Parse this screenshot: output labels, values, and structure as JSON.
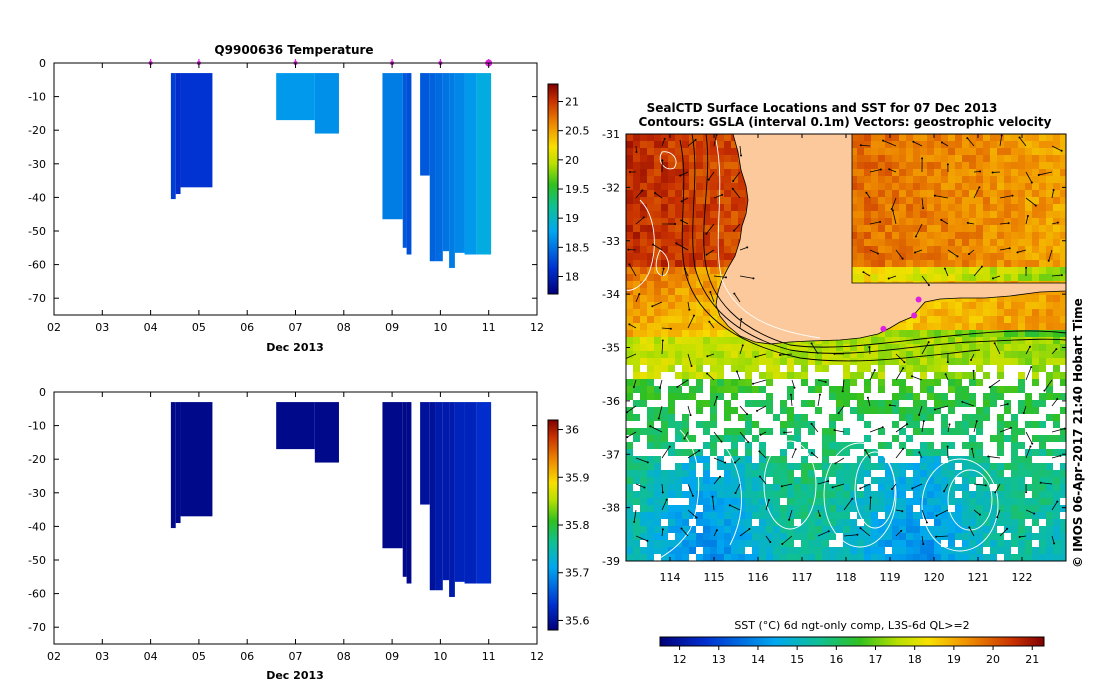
{
  "chart_data": [
    {
      "type": "heatmap",
      "title": "Q9900636  Temperature",
      "xlabel": "Dec 2013",
      "x_ticks": [
        "02",
        "03",
        "04",
        "05",
        "06",
        "07",
        "08",
        "09",
        "10",
        "11",
        "12"
      ],
      "x_range": [
        2,
        12
      ],
      "y_range": [
        -75,
        0
      ],
      "y_ticks": [
        "0",
        "-10",
        "-20",
        "-30",
        "-40",
        "-50",
        "-60",
        "-70"
      ],
      "colorbar_ticks": [
        "21",
        "20.5",
        "20",
        "19.5",
        "19",
        "18.5",
        "18"
      ],
      "colorbar_range": [
        17.7,
        21.3
      ],
      "profile_markers": [
        4.0,
        5.0,
        7.0,
        9.0,
        10.0,
        11.0
      ],
      "profiles": [
        {
          "x0": 4.42,
          "x1": 4.52,
          "bottom": -40.5,
          "value": 18.2
        },
        {
          "x0": 4.52,
          "x1": 4.62,
          "bottom": -39,
          "value": 18.1
        },
        {
          "x0": 4.62,
          "x1": 5.28,
          "bottom": -37,
          "value": 18.15
        },
        {
          "x0": 6.6,
          "x1": 7.4,
          "bottom": -17,
          "value": 18.7
        },
        {
          "x0": 7.4,
          "x1": 7.9,
          "bottom": -21,
          "value": 18.65
        },
        {
          "x0": 8.8,
          "x1": 9.22,
          "bottom": -46.5,
          "value": 18.55
        },
        {
          "x0": 9.22,
          "x1": 9.3,
          "bottom": -55,
          "value": 18.35
        },
        {
          "x0": 9.3,
          "x1": 9.4,
          "bottom": -57,
          "value": 18.3
        },
        {
          "x0": 9.58,
          "x1": 9.78,
          "bottom": -33.5,
          "value": 18.35
        },
        {
          "x0": 9.78,
          "x1": 9.9,
          "bottom": -59,
          "value": 18.4
        },
        {
          "x0": 9.9,
          "x1": 10.05,
          "bottom": -59,
          "value": 18.45
        },
        {
          "x0": 10.05,
          "x1": 10.18,
          "bottom": -56,
          "value": 18.5
        },
        {
          "x0": 10.18,
          "x1": 10.3,
          "bottom": -61,
          "value": 18.55
        },
        {
          "x0": 10.3,
          "x1": 10.5,
          "bottom": -56.5,
          "value": 18.6
        },
        {
          "x0": 10.5,
          "x1": 10.75,
          "bottom": -57,
          "value": 18.7
        },
        {
          "x0": 10.75,
          "x1": 11.05,
          "bottom": -57,
          "value": 18.85
        }
      ]
    },
    {
      "type": "heatmap",
      "title": "",
      "xlabel": "Dec 2013",
      "x_ticks": [
        "02",
        "03",
        "04",
        "05",
        "06",
        "07",
        "08",
        "09",
        "10",
        "11",
        "12"
      ],
      "x_range": [
        2,
        12
      ],
      "y_range": [
        -75,
        0
      ],
      "y_ticks": [
        "0",
        "-10",
        "-20",
        "-30",
        "-40",
        "-50",
        "-60",
        "-70"
      ],
      "colorbar_ticks": [
        "36",
        "35.9",
        "35.8",
        "35.7",
        "35.6"
      ],
      "colorbar_range": [
        35.58,
        36.02
      ],
      "profiles": [
        {
          "x0": 4.42,
          "x1": 4.52,
          "bottom": -40.5,
          "value": 35.59
        },
        {
          "x0": 4.52,
          "x1": 4.62,
          "bottom": -39,
          "value": 35.59
        },
        {
          "x0": 4.62,
          "x1": 5.28,
          "bottom": -37,
          "value": 35.59
        },
        {
          "x0": 6.6,
          "x1": 7.4,
          "bottom": -17,
          "value": 35.59
        },
        {
          "x0": 7.4,
          "x1": 7.9,
          "bottom": -21,
          "value": 35.59
        },
        {
          "x0": 8.8,
          "x1": 9.22,
          "bottom": -46.5,
          "value": 35.59
        },
        {
          "x0": 9.22,
          "x1": 9.3,
          "bottom": -55,
          "value": 35.59
        },
        {
          "x0": 9.3,
          "x1": 9.4,
          "bottom": -57,
          "value": 35.59
        },
        {
          "x0": 9.58,
          "x1": 9.78,
          "bottom": -33.5,
          "value": 35.6
        },
        {
          "x0": 9.78,
          "x1": 9.9,
          "bottom": -59,
          "value": 35.6
        },
        {
          "x0": 9.9,
          "x1": 10.05,
          "bottom": -59,
          "value": 35.61
        },
        {
          "x0": 10.05,
          "x1": 10.18,
          "bottom": -56,
          "value": 35.61
        },
        {
          "x0": 10.18,
          "x1": 10.3,
          "bottom": -61,
          "value": 35.61
        },
        {
          "x0": 10.3,
          "x1": 10.5,
          "bottom": -56.5,
          "value": 35.62
        },
        {
          "x0": 10.5,
          "x1": 10.75,
          "bottom": -57,
          "value": 35.62
        },
        {
          "x0": 10.75,
          "x1": 11.05,
          "bottom": -57,
          "value": 35.63
        }
      ]
    },
    {
      "type": "map",
      "title_line1": "SealCTD Surface Locations and SST for 07 Dec 2013",
      "title_line2": "Contours: GSLA (interval 0.1m) Vectors: geostrophic velocity",
      "lon_range": [
        113,
        123
      ],
      "lat_range": [
        -39,
        -31
      ],
      "lon_ticks": [
        "114",
        "115",
        "116",
        "117",
        "118",
        "119",
        "120",
        "121",
        "122"
      ],
      "lat_ticks": [
        "-31",
        "-32",
        "-33",
        "-34",
        "-35",
        "-36",
        "-37",
        "-38",
        "-39"
      ],
      "colorbar_label": "SST (°C) 6d ngt-only comp, L3S-6d QL>=2",
      "colorbar_ticks": [
        "12",
        "13",
        "14",
        "15",
        "16",
        "17",
        "18",
        "19",
        "20",
        "21"
      ],
      "colorbar_range": [
        11.5,
        21.3
      ],
      "seal_locations": [
        [
          118.85,
          -34.65
        ],
        [
          119.55,
          -34.4
        ],
        [
          119.65,
          -34.1
        ]
      ],
      "side_label": "© IMOS 06-Apr-2017 21:40 Hobart Time"
    }
  ],
  "colors": {
    "land": "#fbc99b",
    "marker": "#e020e0",
    "background": "#ffffff"
  }
}
